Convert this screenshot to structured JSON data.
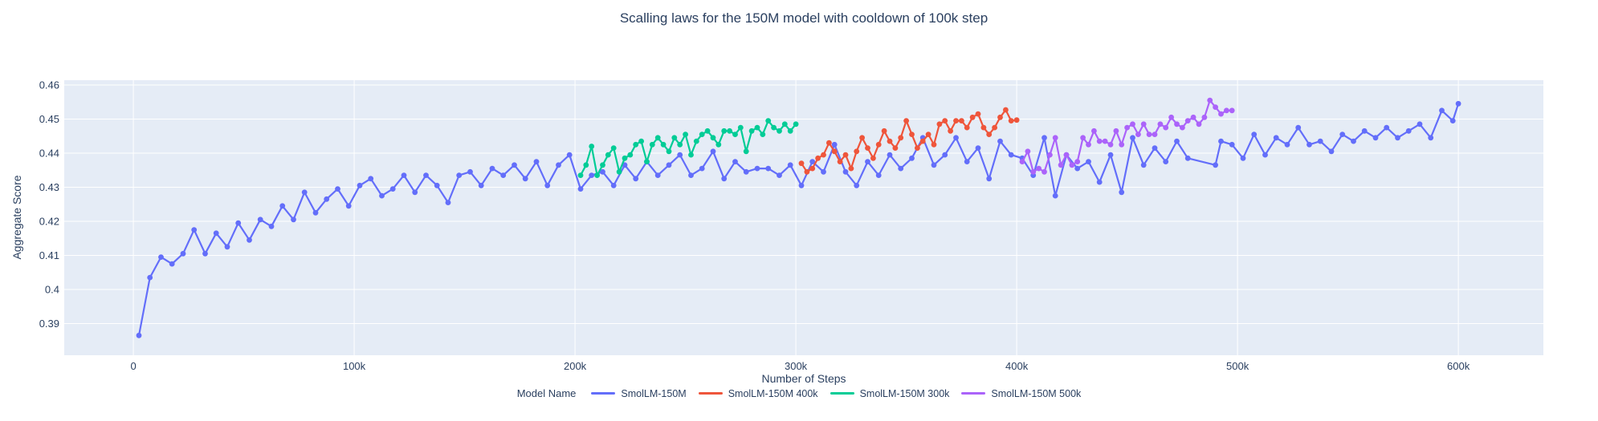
{
  "style": {
    "paper_bg": "#ffffff",
    "plot_bg": "#e5ecf6",
    "grid_color": "#ffffff",
    "text_color": "#2a3f5f",
    "line_width": 2.2,
    "marker_radius": 3.4
  },
  "chart_data": {
    "type": "line",
    "title": "Scalling laws for the 150M model with cooldown of 100k step",
    "xlabel": "Number of Steps",
    "ylabel": "Aggregate Score",
    "x_unit": "thousand steps",
    "xlim_k": [
      -31.3,
      638.5
    ],
    "ylim": [
      0.3807,
      0.4614
    ],
    "grid": true,
    "legend_title": "Model Name",
    "legend_position": "bottom-center",
    "x_ticks": [
      {
        "v": 0,
        "label": "0"
      },
      {
        "v": 100,
        "label": "100k"
      },
      {
        "v": 200,
        "label": "200k"
      },
      {
        "v": 300,
        "label": "300k"
      },
      {
        "v": 400,
        "label": "400k"
      },
      {
        "v": 500,
        "label": "500k"
      },
      {
        "v": 600,
        "label": "600k"
      }
    ],
    "y_ticks": [
      {
        "v": 0.39,
        "label": "0.39"
      },
      {
        "v": 0.4,
        "label": "0.4"
      },
      {
        "v": 0.41,
        "label": "0.41"
      },
      {
        "v": 0.42,
        "label": "0.42"
      },
      {
        "v": 0.43,
        "label": "0.43"
      },
      {
        "v": 0.44,
        "label": "0.44"
      },
      {
        "v": 0.45,
        "label": "0.45"
      },
      {
        "v": 0.46,
        "label": "0.46"
      }
    ],
    "series": [
      {
        "name": "SmolLM-150M",
        "color": "#636EFA",
        "points": [
          [
            2.5,
            0.3865
          ],
          [
            7.5,
            0.4035
          ],
          [
            12.5,
            0.4095
          ],
          [
            17.5,
            0.4075
          ],
          [
            22.5,
            0.4105
          ],
          [
            27.5,
            0.4175
          ],
          [
            32.5,
            0.4105
          ],
          [
            37.5,
            0.4165
          ],
          [
            42.5,
            0.4125
          ],
          [
            47.5,
            0.4195
          ],
          [
            52.5,
            0.4145
          ],
          [
            57.5,
            0.4205
          ],
          [
            62.5,
            0.4185
          ],
          [
            67.5,
            0.4245
          ],
          [
            72.5,
            0.4205
          ],
          [
            77.5,
            0.4285
          ],
          [
            82.5,
            0.4225
          ],
          [
            87.5,
            0.4265
          ],
          [
            92.5,
            0.4295
          ],
          [
            97.5,
            0.4245
          ],
          [
            102.5,
            0.4305
          ],
          [
            107.5,
            0.4325
          ],
          [
            112.5,
            0.4275
          ],
          [
            117.5,
            0.4295
          ],
          [
            122.5,
            0.4335
          ],
          [
            127.5,
            0.4285
          ],
          [
            132.5,
            0.4335
          ],
          [
            137.5,
            0.4305
          ],
          [
            142.5,
            0.4255
          ],
          [
            147.5,
            0.4335
          ],
          [
            152.5,
            0.4345
          ],
          [
            157.5,
            0.4305
          ],
          [
            162.5,
            0.4355
          ],
          [
            167.5,
            0.4335
          ],
          [
            172.5,
            0.4365
          ],
          [
            177.5,
            0.4325
          ],
          [
            182.5,
            0.4375
          ],
          [
            187.5,
            0.4305
          ],
          [
            192.5,
            0.4365
          ],
          [
            197.5,
            0.4395
          ],
          [
            202.5,
            0.4295
          ],
          [
            207.5,
            0.4335
          ],
          [
            212.5,
            0.4345
          ],
          [
            217.5,
            0.4305
          ],
          [
            222.5,
            0.4365
          ],
          [
            227.5,
            0.4325
          ],
          [
            232.5,
            0.4375
          ],
          [
            237.5,
            0.4335
          ],
          [
            242.5,
            0.4365
          ],
          [
            247.5,
            0.4395
          ],
          [
            252.5,
            0.4335
          ],
          [
            257.5,
            0.4355
          ],
          [
            262.5,
            0.4405
          ],
          [
            267.5,
            0.4325
          ],
          [
            272.5,
            0.4375
          ],
          [
            277.5,
            0.4345
          ],
          [
            282.5,
            0.4355
          ],
          [
            287.5,
            0.4355
          ],
          [
            292.5,
            0.4335
          ],
          [
            297.5,
            0.4365
          ],
          [
            302.5,
            0.4305
          ],
          [
            307.5,
            0.4375
          ],
          [
            312.5,
            0.4345
          ],
          [
            317.5,
            0.4425
          ],
          [
            322.5,
            0.4345
          ],
          [
            327.5,
            0.4305
          ],
          [
            332.5,
            0.4375
          ],
          [
            337.5,
            0.4335
          ],
          [
            342.5,
            0.4395
          ],
          [
            347.5,
            0.4355
          ],
          [
            352.5,
            0.4385
          ],
          [
            357.5,
            0.4445
          ],
          [
            362.5,
            0.4365
          ],
          [
            367.5,
            0.4395
          ],
          [
            372.5,
            0.4445
          ],
          [
            377.5,
            0.4375
          ],
          [
            382.5,
            0.4415
          ],
          [
            387.5,
            0.4325
          ],
          [
            392.5,
            0.4435
          ],
          [
            397.5,
            0.4395
          ],
          [
            402.5,
            0.4385
          ],
          [
            407.5,
            0.4335
          ],
          [
            412.5,
            0.4445
          ],
          [
            417.5,
            0.4275
          ],
          [
            422.5,
            0.4395
          ],
          [
            427.5,
            0.4355
          ],
          [
            432.5,
            0.4375
          ],
          [
            437.5,
            0.4315
          ],
          [
            442.5,
            0.4395
          ],
          [
            447.5,
            0.4285
          ],
          [
            452.5,
            0.4445
          ],
          [
            457.5,
            0.4365
          ],
          [
            462.5,
            0.4415
          ],
          [
            467.5,
            0.4375
          ],
          [
            472.5,
            0.4435
          ],
          [
            477.5,
            0.4385
          ],
          [
            490,
            0.4365
          ],
          [
            492.5,
            0.4435
          ],
          [
            497.5,
            0.4425
          ],
          [
            502.5,
            0.4385
          ],
          [
            507.5,
            0.4455
          ],
          [
            512.5,
            0.4395
          ],
          [
            517.5,
            0.4445
          ],
          [
            522.5,
            0.4425
          ],
          [
            527.5,
            0.4475
          ],
          [
            532.5,
            0.4425
          ],
          [
            537.5,
            0.4435
          ],
          [
            542.5,
            0.4405
          ],
          [
            547.5,
            0.4455
          ],
          [
            552.5,
            0.4435
          ],
          [
            557.5,
            0.4465
          ],
          [
            562.5,
            0.4445
          ],
          [
            567.5,
            0.4475
          ],
          [
            572.5,
            0.4445
          ],
          [
            577.5,
            0.4465
          ],
          [
            582.5,
            0.4485
          ],
          [
            587.5,
            0.4445
          ],
          [
            592.5,
            0.4525
          ],
          [
            597.5,
            0.4495
          ],
          [
            600,
            0.4545
          ]
        ]
      },
      {
        "name": "SmolLM-150M 400k",
        "color": "#EF553B",
        "points": [
          [
            302.5,
            0.437
          ],
          [
            305,
            0.4345
          ],
          [
            307.5,
            0.4355
          ],
          [
            310,
            0.4385
          ],
          [
            312.5,
            0.4395
          ],
          [
            315,
            0.443
          ],
          [
            317.5,
            0.4405
          ],
          [
            320,
            0.4375
          ],
          [
            322.5,
            0.4395
          ],
          [
            325,
            0.4355
          ],
          [
            327.5,
            0.4405
          ],
          [
            330,
            0.4445
          ],
          [
            332.5,
            0.4415
          ],
          [
            335,
            0.4385
          ],
          [
            337.5,
            0.4425
          ],
          [
            340,
            0.4465
          ],
          [
            342.5,
            0.4435
          ],
          [
            345,
            0.4415
          ],
          [
            347.5,
            0.4445
          ],
          [
            350,
            0.4495
          ],
          [
            352.5,
            0.4455
          ],
          [
            355,
            0.4415
          ],
          [
            357.5,
            0.4435
          ],
          [
            360,
            0.4455
          ],
          [
            362.5,
            0.4425
          ],
          [
            365,
            0.4485
          ],
          [
            367.5,
            0.4495
          ],
          [
            370,
            0.4465
          ],
          [
            372.5,
            0.4495
          ],
          [
            375,
            0.4495
          ],
          [
            377.5,
            0.4475
          ],
          [
            380,
            0.4505
          ],
          [
            382.5,
            0.4515
          ],
          [
            385,
            0.4475
          ],
          [
            387.5,
            0.4455
          ],
          [
            390,
            0.4475
          ],
          [
            392.5,
            0.4505
          ],
          [
            395,
            0.4527
          ],
          [
            397.5,
            0.4495
          ],
          [
            400,
            0.4497
          ]
        ]
      },
      {
        "name": "SmolLM-150M 300k",
        "color": "#00CC96",
        "points": [
          [
            202.5,
            0.4335
          ],
          [
            205,
            0.4365
          ],
          [
            207.5,
            0.442
          ],
          [
            210,
            0.4335
          ],
          [
            212.5,
            0.4365
          ],
          [
            215,
            0.4395
          ],
          [
            217.5,
            0.4415
          ],
          [
            220,
            0.4345
          ],
          [
            222.5,
            0.4385
          ],
          [
            225,
            0.4395
          ],
          [
            227.5,
            0.4425
          ],
          [
            230,
            0.4435
          ],
          [
            232.5,
            0.4375
          ],
          [
            235,
            0.4425
          ],
          [
            237.5,
            0.4445
          ],
          [
            240,
            0.4425
          ],
          [
            242.5,
            0.4405
          ],
          [
            245,
            0.4445
          ],
          [
            247.5,
            0.4425
          ],
          [
            250,
            0.4455
          ],
          [
            252.5,
            0.4395
          ],
          [
            255,
            0.4435
          ],
          [
            257.5,
            0.4455
          ],
          [
            260,
            0.4465
          ],
          [
            262.5,
            0.4445
          ],
          [
            265,
            0.4425
          ],
          [
            267.5,
            0.4465
          ],
          [
            270,
            0.4465
          ],
          [
            272.5,
            0.4455
          ],
          [
            275,
            0.4475
          ],
          [
            277.5,
            0.4405
          ],
          [
            280,
            0.4465
          ],
          [
            282.5,
            0.4475
          ],
          [
            285,
            0.4455
          ],
          [
            287.5,
            0.4495
          ],
          [
            290,
            0.4475
          ],
          [
            292.5,
            0.4465
          ],
          [
            295,
            0.4485
          ],
          [
            297.5,
            0.4465
          ],
          [
            300,
            0.4485
          ]
        ]
      },
      {
        "name": "SmolLM-150M 500k",
        "color": "#AB63FA",
        "points": [
          [
            402.5,
            0.4375
          ],
          [
            405,
            0.4405
          ],
          [
            407.5,
            0.4345
          ],
          [
            410,
            0.4355
          ],
          [
            412.5,
            0.4345
          ],
          [
            415,
            0.4395
          ],
          [
            417.5,
            0.4445
          ],
          [
            420,
            0.4365
          ],
          [
            422.5,
            0.4395
          ],
          [
            425,
            0.4365
          ],
          [
            427.5,
            0.4375
          ],
          [
            430,
            0.4445
          ],
          [
            432.5,
            0.4425
          ],
          [
            435,
            0.4465
          ],
          [
            437.5,
            0.4435
          ],
          [
            440,
            0.4435
          ],
          [
            442.5,
            0.4425
          ],
          [
            445,
            0.4465
          ],
          [
            447.5,
            0.4425
          ],
          [
            450,
            0.4475
          ],
          [
            452.5,
            0.4485
          ],
          [
            455,
            0.4455
          ],
          [
            457.5,
            0.4485
          ],
          [
            460,
            0.4455
          ],
          [
            462.5,
            0.4455
          ],
          [
            465,
            0.4485
          ],
          [
            467.5,
            0.4475
          ],
          [
            470,
            0.4505
          ],
          [
            472.5,
            0.4485
          ],
          [
            475,
            0.4475
          ],
          [
            477.5,
            0.4495
          ],
          [
            480,
            0.4505
          ],
          [
            482.5,
            0.4485
          ],
          [
            485,
            0.4505
          ],
          [
            487.5,
            0.4555
          ],
          [
            490,
            0.4535
          ],
          [
            492.5,
            0.4515
          ],
          [
            495,
            0.4525
          ],
          [
            497.5,
            0.4525
          ]
        ]
      }
    ]
  }
}
